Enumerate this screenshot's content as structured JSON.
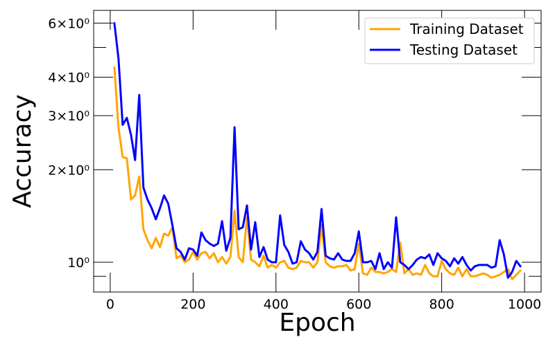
{
  "chart_data": {
    "type": "line",
    "xlabel": "Epoch",
    "ylabel": "Accuracy",
    "yscale": "log",
    "xlim": [
      -40,
      1040
    ],
    "ylim": [
      0.8,
      6.6
    ],
    "x_ticks": [
      0,
      200,
      400,
      600,
      800,
      1000
    ],
    "y_ticks": [
      {
        "value": 1,
        "label": "10⁰"
      },
      {
        "value": 2,
        "label": "2×10⁰"
      },
      {
        "value": 3,
        "label": "3×10⁰"
      },
      {
        "value": 4,
        "label": "4×10⁰"
      },
      {
        "value": 6,
        "label": "6×10⁰"
      }
    ],
    "legend_position": "top-right",
    "grid": false,
    "x": [
      10,
      20,
      30,
      40,
      50,
      60,
      70,
      80,
      90,
      100,
      110,
      120,
      130,
      140,
      150,
      160,
      170,
      180,
      190,
      200,
      210,
      220,
      230,
      240,
      250,
      260,
      270,
      280,
      290,
      300,
      310,
      320,
      330,
      340,
      350,
      360,
      370,
      380,
      390,
      400,
      410,
      420,
      430,
      440,
      450,
      460,
      470,
      480,
      490,
      500,
      510,
      520,
      530,
      540,
      550,
      560,
      570,
      580,
      590,
      600,
      610,
      620,
      630,
      640,
      650,
      660,
      670,
      680,
      690,
      700,
      710,
      720,
      730,
      740,
      750,
      760,
      770,
      780,
      790,
      800,
      810,
      820,
      830,
      840,
      850,
      860,
      870,
      880,
      890,
      900,
      910,
      920,
      930,
      940,
      950,
      960,
      970,
      980,
      990
    ],
    "series": [
      {
        "name": "Training Dataset",
        "color": "#ffa500",
        "values": [
          4.3,
          2.75,
          2.2,
          2.18,
          1.6,
          1.65,
          1.9,
          1.28,
          1.18,
          1.11,
          1.2,
          1.12,
          1.24,
          1.22,
          1.3,
          1.03,
          1.05,
          1.0,
          1.02,
          1.08,
          1.02,
          1.07,
          1.08,
          1.03,
          1.07,
          1.0,
          1.04,
          0.99,
          1.04,
          1.47,
          1.04,
          1.0,
          1.4,
          1.02,
          1.0,
          0.97,
          1.05,
          0.96,
          0.98,
          0.96,
          1.0,
          1.01,
          0.96,
          0.95,
          0.96,
          1.01,
          1.0,
          1.0,
          0.96,
          1.0,
          1.32,
          1.0,
          0.97,
          0.96,
          0.97,
          0.97,
          0.98,
          0.94,
          0.95,
          1.15,
          0.92,
          0.91,
          0.96,
          0.93,
          0.93,
          0.92,
          0.93,
          0.95,
          0.93,
          1.16,
          0.92,
          0.95,
          0.91,
          0.92,
          0.91,
          0.98,
          0.92,
          0.9,
          0.9,
          1.01,
          0.95,
          0.92,
          0.91,
          0.96,
          0.9,
          0.95,
          0.9,
          0.9,
          0.91,
          0.92,
          0.91,
          0.89,
          0.9,
          0.91,
          0.93,
          0.95,
          0.88,
          0.91,
          0.94
        ]
      },
      {
        "name": "Testing Dataset",
        "color": "#0000ff",
        "values": [
          6.0,
          4.6,
          2.8,
          2.95,
          2.6,
          2.15,
          3.5,
          1.75,
          1.6,
          1.5,
          1.38,
          1.5,
          1.65,
          1.55,
          1.32,
          1.11,
          1.08,
          1.02,
          1.11,
          1.1,
          1.05,
          1.25,
          1.18,
          1.15,
          1.13,
          1.15,
          1.36,
          1.09,
          1.2,
          2.75,
          1.28,
          1.3,
          1.53,
          1.1,
          1.35,
          1.04,
          1.12,
          1.02,
          1.0,
          1.0,
          1.42,
          1.14,
          1.08,
          0.99,
          1.0,
          1.17,
          1.1,
          1.07,
          1.02,
          1.08,
          1.49,
          1.05,
          1.03,
          1.02,
          1.07,
          1.02,
          1.01,
          1.01,
          1.07,
          1.26,
          1.0,
          1.0,
          1.01,
          0.95,
          1.07,
          0.95,
          1.0,
          0.96,
          1.4,
          1.0,
          0.98,
          0.95,
          0.98,
          1.02,
          1.04,
          1.03,
          1.06,
          0.98,
          1.07,
          1.03,
          1.01,
          0.97,
          1.03,
          0.99,
          1.04,
          0.98,
          0.94,
          0.97,
          0.98,
          0.98,
          0.98,
          0.96,
          0.97,
          1.18,
          1.06,
          0.89,
          0.93,
          1.01,
          0.97
        ]
      }
    ]
  }
}
